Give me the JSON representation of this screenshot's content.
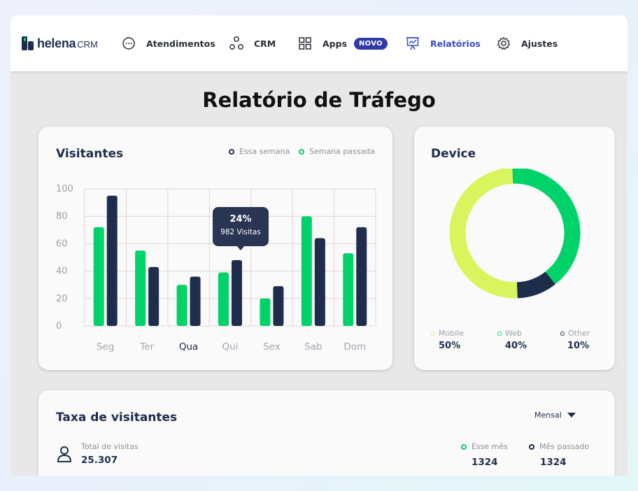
{
  "brand": {
    "name": "helena",
    "suffix": "CRM",
    "accent": "#00d26a",
    "navy": "#1f2d4d"
  },
  "nav": {
    "items": [
      {
        "label": "Atendimentos",
        "icon": "chat-bubble-icon"
      },
      {
        "label": "CRM",
        "icon": "nodes-icon"
      },
      {
        "label": "Apps",
        "icon": "grid-icon",
        "badge": "NOVO"
      },
      {
        "label": "Relatórios",
        "icon": "presentation-chart-icon",
        "active": true
      },
      {
        "label": "Ajustes",
        "icon": "gear-icon"
      }
    ]
  },
  "page": {
    "title": "Relatório de Tráfego"
  },
  "visitors": {
    "title": "Visitantes",
    "legend": [
      {
        "label": "Essa semana",
        "color": "#1f2d4d"
      },
      {
        "label": "Semana passada",
        "color": "#00d26a"
      }
    ],
    "tooltip": {
      "percent": "24%",
      "visits": "982 Visitas"
    }
  },
  "chart_data": {
    "type": "bar",
    "categories": [
      "Seg",
      "Ter",
      "Qua",
      "Qui",
      "Sex",
      "Sab",
      "Dom"
    ],
    "series": [
      {
        "name": "Semana passada",
        "color": "#00d26a",
        "values": [
          72,
          55,
          30,
          39,
          20,
          80,
          53
        ]
      },
      {
        "name": "Essa semana",
        "color": "#1f2d4d",
        "values": [
          95,
          43,
          36,
          48,
          29,
          64,
          72
        ]
      }
    ],
    "yticks": [
      "0",
      "20",
      "40",
      "60",
      "80",
      "100"
    ],
    "ylim": [
      0,
      100
    ],
    "grid": true,
    "highlight_category": "Qua"
  },
  "device": {
    "title": "Device",
    "segments": [
      {
        "label": "Mobile",
        "value": "50%",
        "fraction": 0.5,
        "color": "#d9f55e"
      },
      {
        "label": "Web",
        "value": "40%",
        "fraction": 0.4,
        "color": "#00d26a"
      },
      {
        "label": "Other",
        "value": "10%",
        "fraction": 0.1,
        "color": "#1f2d4d"
      }
    ]
  },
  "rate": {
    "title": "Taxa de visitantes",
    "period": "Mensal",
    "total_label": "Total de visitas",
    "total_value": "25.307",
    "this_month_label": "Esse mês",
    "this_month_value": "1324",
    "last_month_label": "Mês passado",
    "last_month_value": "1324"
  }
}
